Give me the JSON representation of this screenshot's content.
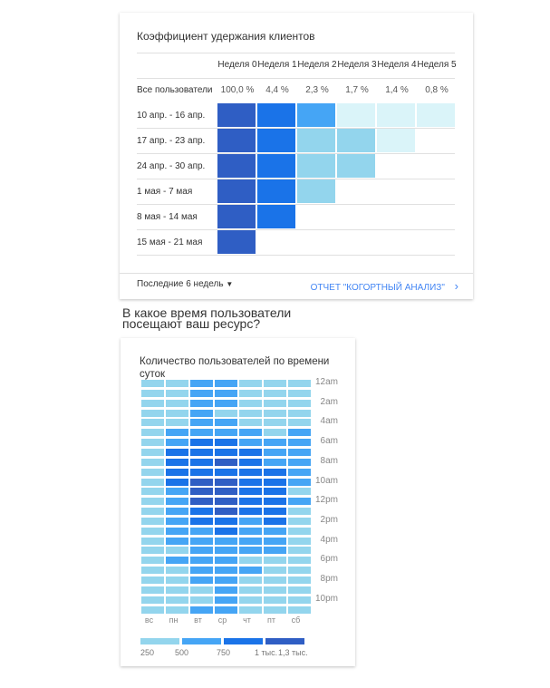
{
  "colors": {
    "dark": "#2f5ec4",
    "blue": "#1a73e8",
    "mid": "#45a5f5",
    "light": "#93d5ed",
    "vlight": "#daf4f9",
    "link": "#4285f4"
  },
  "retention": {
    "title": "Коэффициент удержания клиентов",
    "weeks": [
      "Неделя 0",
      "Неделя 1",
      "Неделя 2",
      "Неделя 3",
      "Неделя 4",
      "Неделя 5"
    ],
    "all_label": "Все пользователи",
    "all_values": [
      "100,0 %",
      "4,4 %",
      "2,3 %",
      "1,7 %",
      "1,4 %",
      "0,8 %"
    ],
    "rows": [
      {
        "label": "10 апр. - 16 апр.",
        "cells": [
          "dark",
          "blue",
          "mid",
          "vlight",
          "vlight",
          "vlight"
        ]
      },
      {
        "label": "17 апр. - 23 апр.",
        "cells": [
          "dark",
          "blue",
          "light",
          "light",
          "vlight"
        ]
      },
      {
        "label": "24 апр. - 30 апр.",
        "cells": [
          "dark",
          "blue",
          "light",
          "light"
        ]
      },
      {
        "label": "1 мая - 7 мая",
        "cells": [
          "dark",
          "blue",
          "light"
        ]
      },
      {
        "label": "8 мая - 14 мая",
        "cells": [
          "dark",
          "blue"
        ]
      },
      {
        "label": "15 мая - 21 мая",
        "cells": [
          "dark"
        ]
      }
    ],
    "range_select": "Последние 6 недель",
    "report_link": "ОТЧЕТ \"КОГОРТНЫЙ АНАЛИЗ\""
  },
  "question": "В какое время пользователи посещают ваш ресурс?",
  "chart_data": {
    "type": "heatmap",
    "title": "Количество пользователей по времени суток",
    "x": [
      "вс",
      "пн",
      "вт",
      "ср",
      "чт",
      "пт",
      "сб"
    ],
    "hour_labels": [
      "12am",
      "2am",
      "4am",
      "6am",
      "8am",
      "10am",
      "12pm",
      "2pm",
      "4pm",
      "6pm",
      "8pm",
      "10pm"
    ],
    "legend": [
      "250",
      "500",
      "750",
      "1 тыс.",
      "1,3 тыс."
    ],
    "levels_note": "0:<500,1:500-750,2:750-1k,3:1k-1.3k",
    "values": [
      [
        0,
        0,
        1,
        1,
        0,
        0,
        0
      ],
      [
        0,
        0,
        1,
        1,
        0,
        0,
        0
      ],
      [
        0,
        0,
        1,
        1,
        0,
        0,
        0
      ],
      [
        0,
        0,
        1,
        0,
        0,
        0,
        0
      ],
      [
        0,
        0,
        1,
        1,
        0,
        0,
        0
      ],
      [
        0,
        1,
        1,
        1,
        1,
        0,
        1
      ],
      [
        0,
        1,
        2,
        2,
        1,
        1,
        1
      ],
      [
        0,
        2,
        2,
        2,
        2,
        1,
        1
      ],
      [
        0,
        2,
        2,
        3,
        2,
        1,
        1
      ],
      [
        0,
        2,
        2,
        2,
        2,
        2,
        1
      ],
      [
        0,
        2,
        3,
        3,
        2,
        2,
        1
      ],
      [
        0,
        1,
        3,
        3,
        2,
        2,
        0
      ],
      [
        0,
        1,
        3,
        3,
        2,
        2,
        1
      ],
      [
        0,
        1,
        2,
        3,
        2,
        2,
        0
      ],
      [
        0,
        1,
        2,
        2,
        1,
        2,
        0
      ],
      [
        0,
        1,
        1,
        2,
        1,
        1,
        0
      ],
      [
        0,
        1,
        1,
        1,
        1,
        1,
        0
      ],
      [
        0,
        0,
        1,
        1,
        1,
        1,
        0
      ],
      [
        0,
        1,
        1,
        1,
        0,
        0,
        0
      ],
      [
        0,
        0,
        1,
        1,
        1,
        0,
        0
      ],
      [
        0,
        0,
        1,
        1,
        0,
        0,
        0
      ],
      [
        0,
        0,
        0,
        1,
        0,
        0,
        0
      ],
      [
        0,
        0,
        0,
        1,
        0,
        0,
        0
      ],
      [
        0,
        0,
        1,
        1,
        0,
        0,
        0
      ]
    ]
  }
}
